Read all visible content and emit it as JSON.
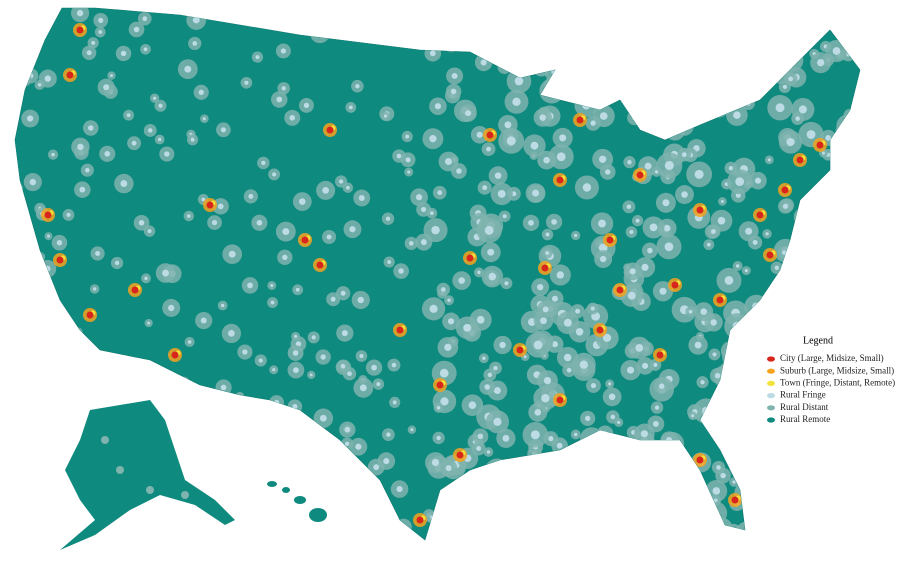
{
  "legend": {
    "title": "Legend",
    "items": [
      {
        "label": "City (Large, Midsize, Small)",
        "color": "#d9261c"
      },
      {
        "label": "Suburb (Large, Midsize, Small)",
        "color": "#f5a21f"
      },
      {
        "label": "Town (Fringe, Distant, Remote)",
        "color": "#f2e33c"
      },
      {
        "label": "Rural Fringe",
        "color": "#bcdbe4"
      },
      {
        "label": "Rural Distant",
        "color": "#7fb3ae"
      },
      {
        "label": "Rural Remote",
        "color": "#0f8a7f"
      }
    ]
  }
}
